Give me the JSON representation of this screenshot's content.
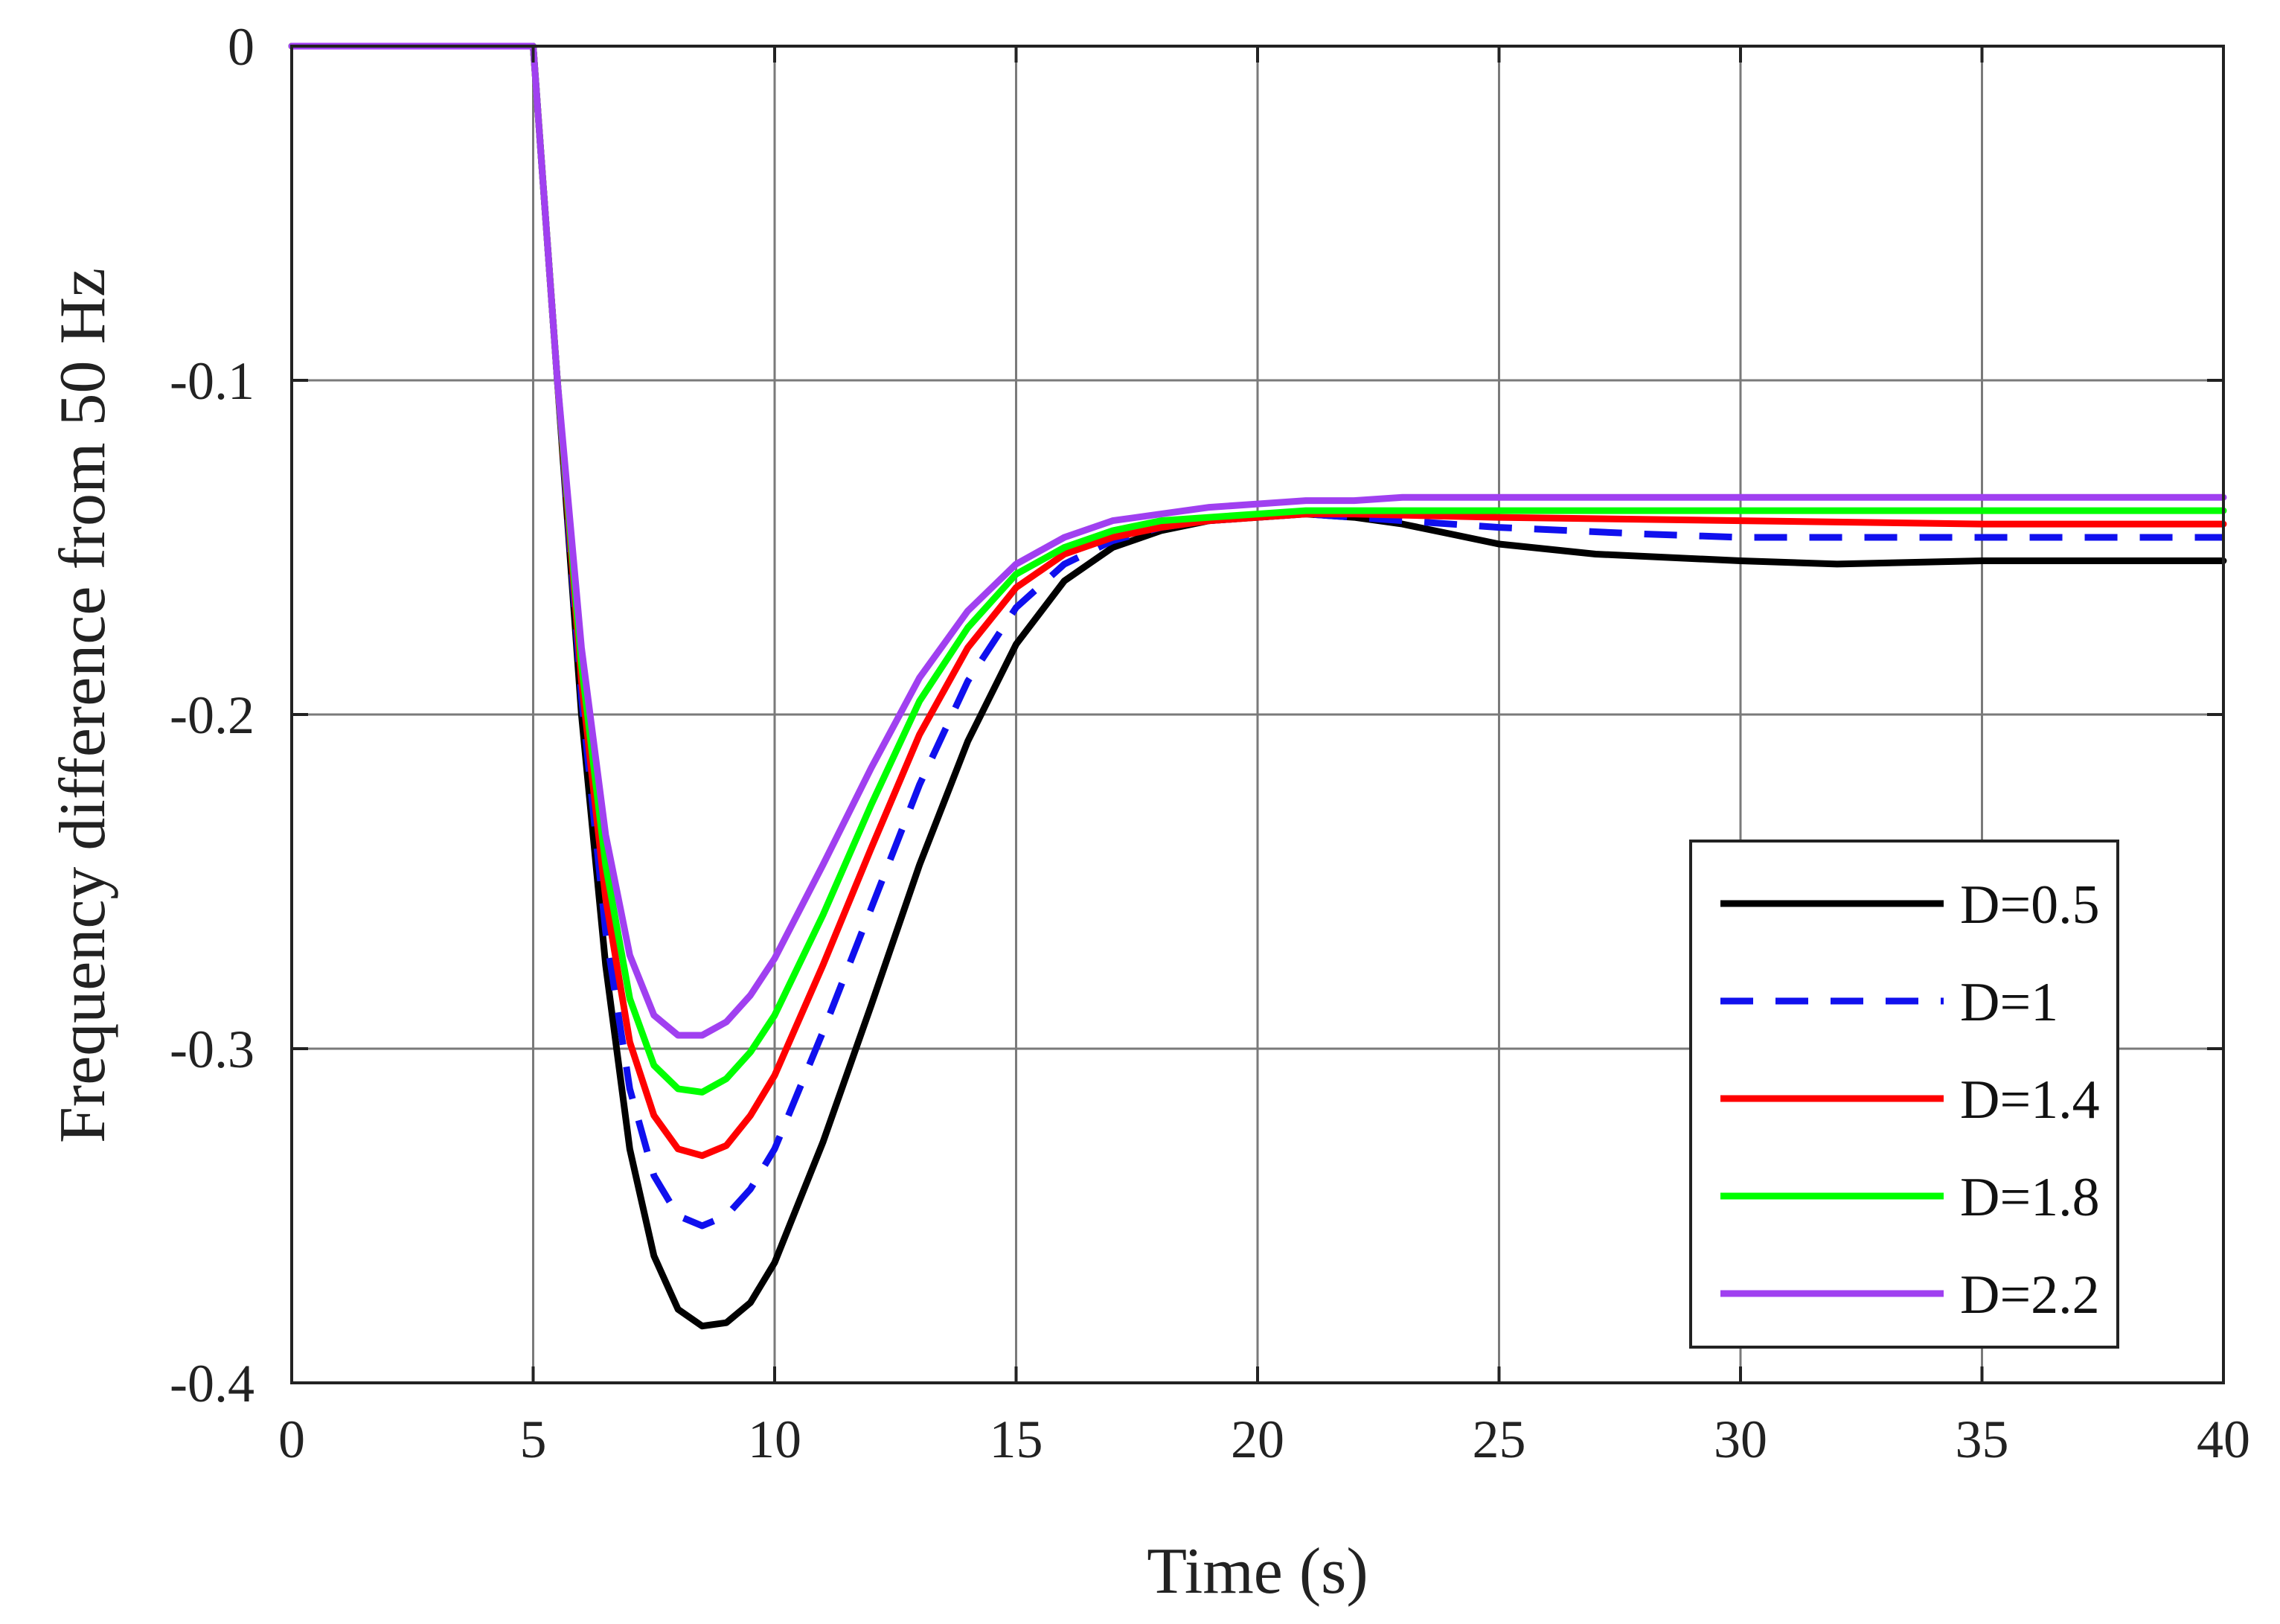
{
  "chart_data": {
    "type": "line",
    "title": "",
    "xlabel": "Time (s)",
    "ylabel": "Frequency difference from 50 Hz",
    "xlim": [
      0,
      40
    ],
    "ylim": [
      -0.4,
      0
    ],
    "xticks": [
      0,
      5,
      10,
      15,
      20,
      25,
      30,
      35,
      40
    ],
    "xtick_labels": [
      "0",
      "5",
      "10",
      "15",
      "20",
      "25",
      "30",
      "35",
      "40"
    ],
    "yticks": [
      0,
      -0.1,
      -0.2,
      -0.3,
      -0.4
    ],
    "ytick_labels": [
      "0",
      "-0.1",
      "-0.2",
      "-0.3",
      "-0.4"
    ],
    "grid": true,
    "legend_position": "bottom-right",
    "series": [
      {
        "name": "D=0.5",
        "color": "#000000",
        "dash": "solid",
        "x": [
          0,
          5,
          5.5,
          6,
          6.5,
          7,
          7.5,
          8,
          8.5,
          9,
          9.5,
          10,
          11,
          12,
          13,
          14,
          15,
          16,
          17,
          18,
          19,
          20,
          21,
          22,
          23,
          24,
          25,
          27,
          30,
          32,
          35,
          40
        ],
        "y": [
          0,
          0,
          -0.1,
          -0.2,
          -0.275,
          -0.33,
          -0.362,
          -0.378,
          -0.383,
          -0.382,
          -0.376,
          -0.364,
          -0.328,
          -0.287,
          -0.245,
          -0.208,
          -0.179,
          -0.16,
          -0.15,
          -0.145,
          -0.142,
          -0.141,
          -0.14,
          -0.141,
          -0.143,
          -0.146,
          -0.149,
          -0.152,
          -0.154,
          -0.155,
          -0.154,
          -0.154
        ]
      },
      {
        "name": "D=1",
        "color": "#1010ee",
        "dash": "dashed",
        "x": [
          0,
          5,
          5.5,
          6,
          6.5,
          7,
          7.5,
          8,
          8.5,
          9,
          9.5,
          10,
          11,
          12,
          13,
          14,
          15,
          16,
          17,
          18,
          19,
          20,
          21,
          22,
          23,
          25,
          28,
          30,
          35,
          40
        ],
        "y": [
          0,
          0,
          -0.1,
          -0.195,
          -0.265,
          -0.312,
          -0.338,
          -0.35,
          -0.353,
          -0.35,
          -0.342,
          -0.33,
          -0.295,
          -0.258,
          -0.221,
          -0.19,
          -0.168,
          -0.155,
          -0.148,
          -0.144,
          -0.142,
          -0.141,
          -0.14,
          -0.141,
          -0.142,
          -0.144,
          -0.146,
          -0.147,
          -0.147,
          -0.147
        ]
      },
      {
        "name": "D=1.4",
        "color": "#ff0000",
        "dash": "solid",
        "x": [
          0,
          5,
          5.5,
          6,
          6.5,
          7,
          7.5,
          8,
          8.5,
          9,
          9.5,
          10,
          11,
          12,
          13,
          14,
          15,
          16,
          17,
          18,
          19,
          20,
          21,
          22,
          25,
          30,
          35,
          40
        ],
        "y": [
          0,
          0,
          -0.1,
          -0.19,
          -0.255,
          -0.298,
          -0.32,
          -0.33,
          -0.332,
          -0.329,
          -0.32,
          -0.308,
          -0.275,
          -0.24,
          -0.206,
          -0.18,
          -0.162,
          -0.152,
          -0.147,
          -0.144,
          -0.142,
          -0.141,
          -0.14,
          -0.14,
          -0.141,
          -0.142,
          -0.143,
          -0.143
        ]
      },
      {
        "name": "D=1.8",
        "color": "#00ff00",
        "dash": "solid",
        "x": [
          0,
          5,
          5.5,
          6,
          6.5,
          7,
          7.5,
          8,
          8.5,
          9,
          9.5,
          10,
          11,
          12,
          13,
          14,
          15,
          16,
          17,
          18,
          19,
          20,
          21,
          22,
          25,
          30,
          35,
          40
        ],
        "y": [
          0,
          0,
          -0.1,
          -0.185,
          -0.245,
          -0.285,
          -0.305,
          -0.312,
          -0.313,
          -0.309,
          -0.301,
          -0.29,
          -0.26,
          -0.227,
          -0.196,
          -0.174,
          -0.158,
          -0.15,
          -0.145,
          -0.142,
          -0.141,
          -0.14,
          -0.139,
          -0.139,
          -0.139,
          -0.139,
          -0.139,
          -0.139
        ]
      },
      {
        "name": "D=2.2",
        "color": "#a040f0",
        "dash": "solid",
        "x": [
          0,
          5,
          5.5,
          6,
          6.5,
          7,
          7.5,
          8,
          8.5,
          9,
          9.5,
          10,
          11,
          12,
          13,
          14,
          15,
          16,
          17,
          18,
          19,
          20,
          21,
          22,
          23,
          25,
          30,
          35,
          40
        ],
        "y": [
          0,
          0,
          -0.1,
          -0.18,
          -0.236,
          -0.272,
          -0.29,
          -0.296,
          -0.296,
          -0.292,
          -0.284,
          -0.273,
          -0.245,
          -0.216,
          -0.189,
          -0.169,
          -0.155,
          -0.147,
          -0.142,
          -0.14,
          -0.138,
          -0.137,
          -0.136,
          -0.136,
          -0.135,
          -0.135,
          -0.135,
          -0.135,
          -0.135
        ]
      }
    ]
  }
}
